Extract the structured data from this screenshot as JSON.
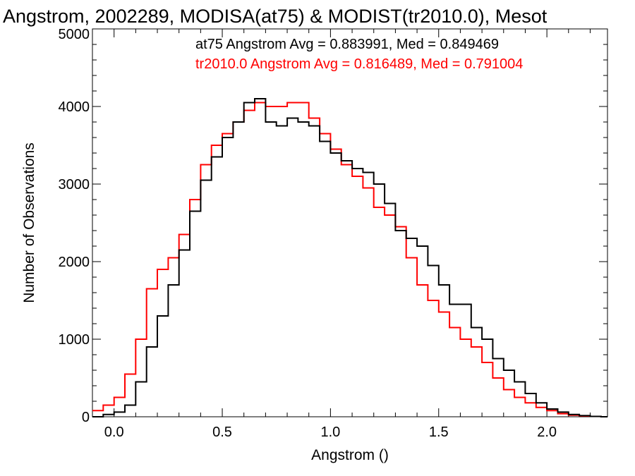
{
  "chart_data": {
    "type": "line",
    "title": "Angstrom, 2002289, MODISA(at75) & MODIST(tr2010.0), Mesot",
    "xlabel": "Angstrom ()",
    "ylabel": "Number of Observations",
    "xlim": [
      -0.1,
      2.28
    ],
    "ylim": [
      0,
      5000
    ],
    "xticks": [
      0.0,
      0.5,
      1.0,
      1.5,
      2.0
    ],
    "xtick_labels": [
      "0.0",
      "0.5",
      "1.0",
      "1.5",
      "2.0"
    ],
    "yticks": [
      0,
      1000,
      2000,
      3000,
      4000,
      5000
    ],
    "ytick_labels": [
      "0",
      "1000",
      "2000",
      "3000",
      "4000",
      "5000"
    ],
    "grid": false,
    "step": true,
    "annotations": [
      {
        "text": "at75 Angstrom Avg = 0.883991, Med = 0.849469",
        "color": "#000000"
      },
      {
        "text": "tr2010.0 Angstrom Avg = 0.816489, Med = 0.791004",
        "color": "#ff0000"
      }
    ],
    "series": [
      {
        "color": "#000000",
        "x": [
          -0.1,
          -0.05,
          0.0,
          0.05,
          0.1,
          0.15,
          0.2,
          0.25,
          0.3,
          0.35,
          0.4,
          0.45,
          0.5,
          0.55,
          0.6,
          0.65,
          0.7,
          0.75,
          0.8,
          0.85,
          0.9,
          0.95,
          1.0,
          1.05,
          1.1,
          1.15,
          1.2,
          1.25,
          1.3,
          1.35,
          1.4,
          1.45,
          1.5,
          1.55,
          1.6,
          1.65,
          1.7,
          1.75,
          1.8,
          1.85,
          1.9,
          1.95,
          2.0,
          2.05,
          2.1,
          2.15,
          2.2,
          2.25
        ],
        "values": [
          0,
          30,
          60,
          150,
          450,
          900,
          1300,
          1700,
          2150,
          2650,
          3050,
          3350,
          3600,
          3800,
          4050,
          4100,
          3800,
          3750,
          3850,
          3800,
          3750,
          3550,
          3400,
          3300,
          3200,
          3150,
          3000,
          2750,
          2400,
          2300,
          2200,
          1950,
          1700,
          1450,
          1450,
          1150,
          1000,
          750,
          600,
          450,
          300,
          180,
          100,
          60,
          30,
          15,
          5,
          0
        ]
      },
      {
        "color": "#ff0000",
        "x": [
          -0.1,
          -0.05,
          0.0,
          0.05,
          0.1,
          0.15,
          0.2,
          0.25,
          0.3,
          0.35,
          0.4,
          0.45,
          0.5,
          0.55,
          0.6,
          0.65,
          0.7,
          0.75,
          0.8,
          0.85,
          0.9,
          0.95,
          1.0,
          1.05,
          1.1,
          1.15,
          1.2,
          1.25,
          1.3,
          1.35,
          1.4,
          1.45,
          1.5,
          1.55,
          1.6,
          1.65,
          1.7,
          1.75,
          1.8,
          1.85,
          1.9,
          1.95,
          2.0,
          2.05,
          2.1,
          2.15,
          2.2,
          2.25
        ],
        "values": [
          80,
          150,
          250,
          550,
          1000,
          1650,
          1900,
          2050,
          2350,
          2800,
          3250,
          3500,
          3650,
          3800,
          3950,
          4050,
          4000,
          4000,
          4050,
          4050,
          3850,
          3650,
          3450,
          3250,
          3100,
          2950,
          2700,
          2600,
          2450,
          2050,
          1700,
          1500,
          1350,
          1150,
          1000,
          900,
          700,
          500,
          350,
          250,
          180,
          120,
          80,
          40,
          20,
          10,
          5,
          0
        ]
      }
    ]
  }
}
